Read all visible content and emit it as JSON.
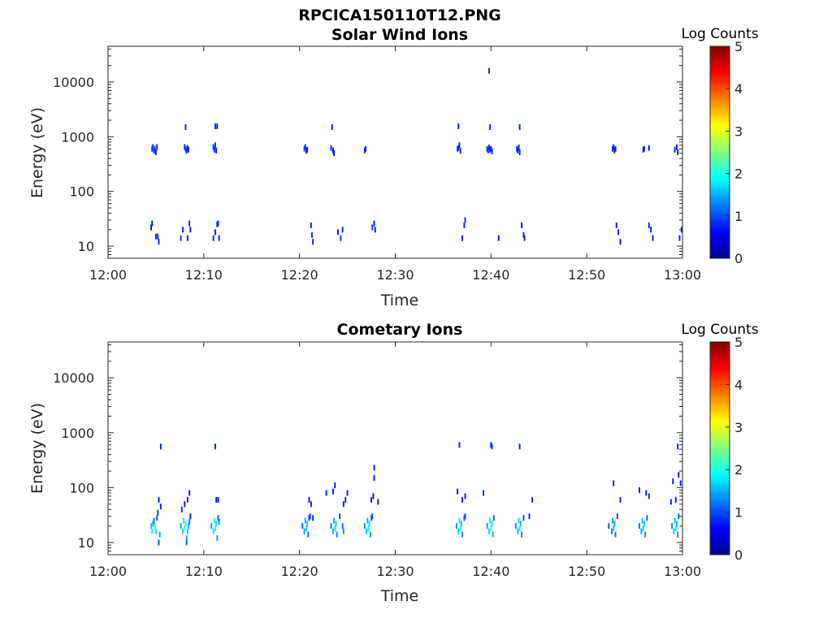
{
  "figure_title": "RPCICA150110T12.PNG",
  "chart_data": [
    {
      "type": "heatmap",
      "title": "Solar Wind Ions",
      "xlabel": "Time",
      "ylabel": "Energy (eV)",
      "x_ticks": [
        "12:00",
        "12:10",
        "12:20",
        "12:30",
        "12:40",
        "12:50",
        "13:00"
      ],
      "y_ticks": [
        "10",
        "100",
        "1000",
        "10000"
      ],
      "y_scale": "log",
      "ylim": [
        6,
        45000
      ],
      "xlim": [
        "12:00",
        "13:00"
      ],
      "colorbar": {
        "label": "Log Counts",
        "ticks": [
          "0",
          "1",
          "2",
          "3",
          "4",
          "5"
        ],
        "range": [
          0,
          5
        ],
        "colormap": "jet"
      },
      "cells": [
        [
          4.6,
          600,
          0.3
        ],
        [
          4.7,
          650,
          0.4
        ],
        [
          4.8,
          550,
          0.3
        ],
        [
          4.9,
          600,
          0.5
        ],
        [
          5.0,
          520,
          0.2
        ],
        [
          5.1,
          650,
          0.3
        ],
        [
          4.5,
          22,
          0.1
        ],
        [
          4.6,
          26,
          0.2
        ],
        [
          5.0,
          15,
          0.2
        ],
        [
          5.2,
          15,
          0.3
        ],
        [
          5.3,
          12,
          0.2
        ],
        [
          8.0,
          650,
          0.3
        ],
        [
          8.1,
          600,
          0.4
        ],
        [
          8.2,
          550,
          0.3
        ],
        [
          8.3,
          620,
          0.2
        ],
        [
          8.4,
          580,
          0.3
        ],
        [
          8.1,
          1500,
          0.2
        ],
        [
          7.6,
          14,
          0.3
        ],
        [
          7.8,
          20,
          0.2
        ],
        [
          8.3,
          14,
          0.2
        ],
        [
          8.5,
          26,
          0.2
        ],
        [
          8.6,
          20,
          0.2
        ],
        [
          11.0,
          650,
          0.4
        ],
        [
          11.1,
          580,
          0.3
        ],
        [
          11.2,
          700,
          0.3
        ],
        [
          11.3,
          560,
          0.2
        ],
        [
          11.2,
          1550,
          0.3
        ],
        [
          11.4,
          1550,
          0.2
        ],
        [
          11.0,
          14,
          0.2
        ],
        [
          11.2,
          18,
          0.2
        ],
        [
          11.4,
          25,
          0.2
        ],
        [
          11.5,
          26,
          0.3
        ],
        [
          11.6,
          14,
          0.2
        ],
        [
          20.5,
          600,
          0.4
        ],
        [
          20.6,
          650,
          0.3
        ],
        [
          20.7,
          550,
          0.3
        ],
        [
          20.8,
          580,
          0.2
        ],
        [
          21.2,
          24,
          0.2
        ],
        [
          21.3,
          16,
          0.3
        ],
        [
          21.4,
          12,
          0.2
        ],
        [
          23.3,
          620,
          0.3
        ],
        [
          23.5,
          560,
          0.2
        ],
        [
          23.6,
          500,
          0.2
        ],
        [
          23.4,
          1500,
          0.2
        ],
        [
          24.0,
          18,
          0.2
        ],
        [
          24.3,
          14,
          0.3
        ],
        [
          24.5,
          20,
          0.2
        ],
        [
          26.8,
          560,
          0.3
        ],
        [
          26.9,
          600,
          0.2
        ],
        [
          27.6,
          22,
          0.3
        ],
        [
          27.8,
          26,
          0.2
        ],
        [
          27.9,
          20,
          0.2
        ],
        [
          36.5,
          600,
          0.4
        ],
        [
          36.6,
          620,
          0.3
        ],
        [
          36.7,
          700,
          0.3
        ],
        [
          36.8,
          550,
          0.2
        ],
        [
          36.6,
          1550,
          0.2
        ],
        [
          37.0,
          14,
          0.2
        ],
        [
          37.2,
          24,
          0.2
        ],
        [
          37.3,
          30,
          0.3
        ],
        [
          39.6,
          600,
          0.4
        ],
        [
          39.7,
          560,
          0.3
        ],
        [
          39.8,
          640,
          0.3
        ],
        [
          39.9,
          580,
          0.2
        ],
        [
          40.0,
          600,
          0.3
        ],
        [
          40.1,
          540,
          0.2
        ],
        [
          39.9,
          1500,
          0.2
        ],
        [
          39.8,
          16000,
          0.2
        ],
        [
          40.8,
          14,
          0.2
        ],
        [
          42.7,
          600,
          0.3
        ],
        [
          42.8,
          560,
          0.3
        ],
        [
          42.9,
          640,
          0.2
        ],
        [
          43.0,
          520,
          0.2
        ],
        [
          43.0,
          1500,
          0.2
        ],
        [
          43.2,
          24,
          0.2
        ],
        [
          43.4,
          16,
          0.3
        ],
        [
          43.5,
          14,
          0.2
        ],
        [
          52.7,
          600,
          0.3
        ],
        [
          52.8,
          650,
          0.3
        ],
        [
          52.9,
          560,
          0.2
        ],
        [
          53.0,
          600,
          0.2
        ],
        [
          53.1,
          24,
          0.2
        ],
        [
          53.3,
          18,
          0.2
        ],
        [
          53.5,
          12,
          0.2
        ],
        [
          55.9,
          580,
          0.3
        ],
        [
          56.0,
          600,
          0.2
        ],
        [
          56.5,
          620,
          0.2
        ],
        [
          56.5,
          24,
          0.2
        ],
        [
          56.7,
          20,
          0.2
        ],
        [
          56.9,
          14,
          0.2
        ],
        [
          59.2,
          580,
          0.3
        ],
        [
          59.4,
          640,
          0.2
        ],
        [
          59.5,
          520,
          0.2
        ],
        [
          59.7,
          14,
          0.2
        ],
        [
          59.9,
          20,
          0.2
        ]
      ]
    },
    {
      "type": "heatmap",
      "title": "Cometary Ions",
      "xlabel": "Time",
      "ylabel": "Energy (eV)",
      "x_ticks": [
        "12:00",
        "12:10",
        "12:20",
        "12:30",
        "12:40",
        "12:50",
        "13:00"
      ],
      "y_ticks": [
        "10",
        "100",
        "1000",
        "10000"
      ],
      "y_scale": "log",
      "ylim": [
        6,
        45000
      ],
      "xlim": [
        "12:00",
        "13:00"
      ],
      "colorbar": {
        "label": "Log Counts",
        "ticks": [
          "0",
          "1",
          "2",
          "3",
          "4",
          "5"
        ],
        "range": [
          0,
          5
        ],
        "colormap": "jet"
      },
      "cells": [
        [
          4.5,
          20,
          1.2
        ],
        [
          4.6,
          16,
          1.5
        ],
        [
          4.7,
          22,
          1.0
        ],
        [
          4.8,
          25,
          0.8
        ],
        [
          4.9,
          20,
          1.6
        ],
        [
          5.0,
          16,
          1.3
        ],
        [
          5.1,
          28,
          0.6
        ],
        [
          5.2,
          35,
          0.4
        ],
        [
          5.3,
          60,
          0.2
        ],
        [
          5.5,
          45,
          0.3
        ],
        [
          5.3,
          10,
          0.5
        ],
        [
          5.4,
          14,
          1.0
        ],
        [
          5.5,
          560,
          0.2
        ],
        [
          7.6,
          20,
          1.0
        ],
        [
          7.8,
          16,
          1.3
        ],
        [
          7.9,
          25,
          1.4
        ],
        [
          8.0,
          18,
          1.8
        ],
        [
          8.1,
          22,
          1.5
        ],
        [
          8.2,
          12,
          1.0
        ],
        [
          8.3,
          16,
          1.2
        ],
        [
          8.4,
          20,
          1.1
        ],
        [
          8.5,
          24,
          0.7
        ],
        [
          8.3,
          60,
          0.2
        ],
        [
          8.5,
          80,
          0.2
        ],
        [
          7.7,
          40,
          0.3
        ],
        [
          8.0,
          50,
          0.2
        ],
        [
          8.6,
          30,
          0.2
        ],
        [
          8.2,
          10,
          0.6
        ],
        [
          10.8,
          20,
          0.9
        ],
        [
          11.0,
          16,
          1.3
        ],
        [
          11.1,
          25,
          1.5
        ],
        [
          11.2,
          18,
          1.6
        ],
        [
          11.3,
          22,
          1.4
        ],
        [
          11.4,
          12,
          0.9
        ],
        [
          11.5,
          28,
          0.6
        ],
        [
          11.6,
          24,
          0.8
        ],
        [
          11.3,
          60,
          0.2
        ],
        [
          11.5,
          60,
          0.2
        ],
        [
          11.2,
          560,
          0.2
        ],
        [
          20.3,
          20,
          0.6
        ],
        [
          20.5,
          16,
          0.9
        ],
        [
          20.6,
          25,
          1.1
        ],
        [
          20.7,
          18,
          1.3
        ],
        [
          20.8,
          22,
          1.2
        ],
        [
          20.9,
          14,
          0.7
        ],
        [
          21.0,
          28,
          0.5
        ],
        [
          21.1,
          30,
          0.4
        ],
        [
          21.0,
          60,
          0.2
        ],
        [
          21.2,
          50,
          0.2
        ],
        [
          21.4,
          28,
          0.3
        ],
        [
          23.3,
          20,
          0.7
        ],
        [
          23.5,
          16,
          1.0
        ],
        [
          23.6,
          25,
          1.0
        ],
        [
          23.7,
          18,
          1.3
        ],
        [
          23.8,
          22,
          1.2
        ],
        [
          23.9,
          14,
          0.8
        ],
        [
          24.2,
          30,
          0.4
        ],
        [
          24.5,
          20,
          0.6
        ],
        [
          24.6,
          16,
          0.9
        ],
        [
          23.5,
          85,
          0.2
        ],
        [
          23.7,
          110,
          0.2
        ],
        [
          24.6,
          50,
          0.2
        ],
        [
          24.8,
          60,
          0.2
        ],
        [
          25.0,
          80,
          0.2
        ],
        [
          22.8,
          80,
          0.2
        ],
        [
          26.8,
          20,
          0.9
        ],
        [
          27.0,
          16,
          1.2
        ],
        [
          27.1,
          25,
          1.1
        ],
        [
          27.2,
          18,
          1.4
        ],
        [
          27.3,
          22,
          1.3
        ],
        [
          27.4,
          14,
          0.9
        ],
        [
          27.5,
          28,
          0.6
        ],
        [
          27.6,
          30,
          0.5
        ],
        [
          27.5,
          60,
          0.2
        ],
        [
          27.7,
          70,
          0.2
        ],
        [
          27.8,
          150,
          0.2
        ],
        [
          27.8,
          230,
          0.2
        ],
        [
          28.2,
          55,
          0.2
        ],
        [
          36.4,
          20,
          0.9
        ],
        [
          36.6,
          16,
          1.2
        ],
        [
          36.7,
          25,
          1.3
        ],
        [
          36.8,
          18,
          1.5
        ],
        [
          36.9,
          22,
          1.2
        ],
        [
          37.0,
          14,
          0.9
        ],
        [
          37.2,
          28,
          0.6
        ],
        [
          37.3,
          30,
          0.5
        ],
        [
          37.0,
          60,
          0.2
        ],
        [
          37.3,
          70,
          0.2
        ],
        [
          36.5,
          85,
          0.2
        ],
        [
          36.7,
          600,
          0.3
        ],
        [
          39.6,
          20,
          0.9
        ],
        [
          39.8,
          16,
          1.3
        ],
        [
          39.9,
          25,
          1.4
        ],
        [
          40.0,
          18,
          1.7
        ],
        [
          40.1,
          22,
          1.4
        ],
        [
          40.2,
          14,
          1.0
        ],
        [
          40.3,
          28,
          0.6
        ],
        [
          40.0,
          600,
          0.3
        ],
        [
          40.1,
          560,
          0.3
        ],
        [
          39.2,
          80,
          0.2
        ],
        [
          42.6,
          20,
          0.8
        ],
        [
          42.8,
          16,
          1.1
        ],
        [
          42.9,
          25,
          1.3
        ],
        [
          43.0,
          18,
          1.4
        ],
        [
          43.1,
          22,
          1.2
        ],
        [
          43.2,
          14,
          0.8
        ],
        [
          43.4,
          28,
          0.5
        ],
        [
          43.0,
          560,
          0.2
        ],
        [
          44.0,
          30,
          0.3
        ],
        [
          44.3,
          60,
          0.3
        ],
        [
          52.3,
          20,
          0.6
        ],
        [
          52.6,
          16,
          0.8
        ],
        [
          52.7,
          25,
          1.0
        ],
        [
          52.8,
          18,
          1.2
        ],
        [
          52.9,
          22,
          1.0
        ],
        [
          53.0,
          14,
          0.7
        ],
        [
          53.2,
          30,
          0.4
        ],
        [
          53.5,
          60,
          0.3
        ],
        [
          52.8,
          120,
          0.2
        ],
        [
          55.5,
          20,
          0.7
        ],
        [
          55.7,
          16,
          1.0
        ],
        [
          55.8,
          25,
          1.1
        ],
        [
          55.9,
          18,
          1.3
        ],
        [
          56.0,
          22,
          1.2
        ],
        [
          56.1,
          14,
          0.8
        ],
        [
          56.3,
          28,
          0.6
        ],
        [
          56.5,
          70,
          0.2
        ],
        [
          56.2,
          80,
          0.2
        ],
        [
          55.5,
          90,
          0.2
        ],
        [
          58.9,
          20,
          0.8
        ],
        [
          59.1,
          16,
          1.1
        ],
        [
          59.2,
          25,
          1.2
        ],
        [
          59.3,
          18,
          1.4
        ],
        [
          59.4,
          22,
          1.1
        ],
        [
          59.5,
          14,
          0.8
        ],
        [
          59.6,
          30,
          0.6
        ],
        [
          59.3,
          60,
          0.2
        ],
        [
          58.8,
          55,
          0.2
        ],
        [
          59.0,
          130,
          0.2
        ],
        [
          59.6,
          170,
          0.2
        ],
        [
          59.5,
          560,
          0.2
        ],
        [
          59.8,
          120,
          0.2
        ]
      ]
    }
  ]
}
